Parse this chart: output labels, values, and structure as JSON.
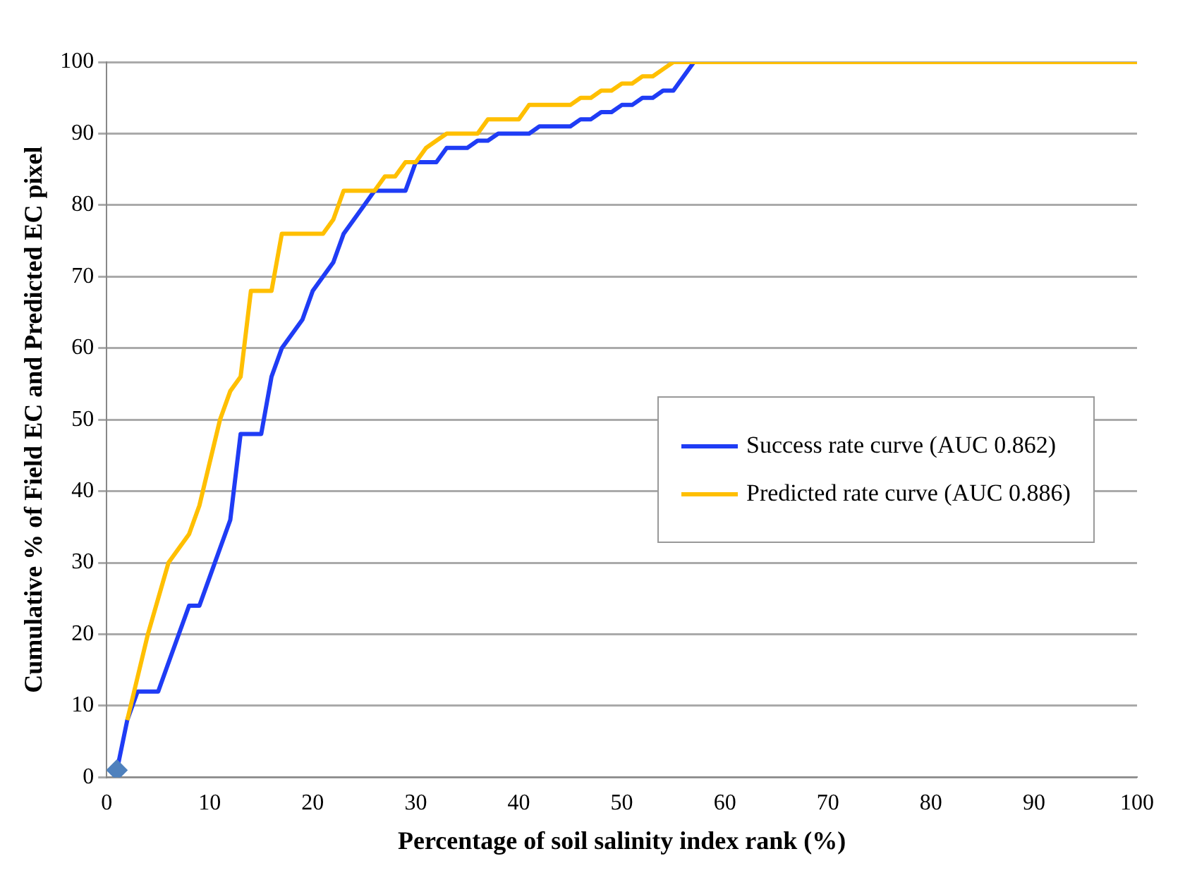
{
  "chart_data": {
    "type": "line",
    "xlabel": "Percentage of soil salinity index rank (%)",
    "ylabel": "Cumulative % of Field EC and Predicted EC pixel",
    "xlim": [
      0,
      100
    ],
    "xticks": [
      0,
      10,
      20,
      30,
      40,
      50,
      60,
      70,
      80,
      90,
      100
    ],
    "ylim": [
      0,
      100
    ],
    "yticks": [
      0,
      10,
      20,
      30,
      40,
      50,
      60,
      70,
      80,
      90,
      100
    ],
    "grid": "y",
    "legend": "right",
    "marker": "none",
    "line_style": "solid",
    "series": [
      {
        "name": "Success rate curve (AUC 0.862)",
        "color": "#1f3cf5",
        "x": [
          1,
          2,
          3,
          4,
          5,
          6,
          7,
          8,
          9,
          10,
          11,
          12,
          13,
          14,
          15,
          16,
          17,
          18,
          19,
          20,
          21,
          22,
          23,
          24,
          25,
          26,
          27,
          28,
          29,
          30,
          31,
          32,
          33,
          34,
          35,
          36,
          37,
          38,
          39,
          40,
          41,
          42,
          43,
          44,
          45,
          46,
          47,
          48,
          49,
          50,
          51,
          52,
          53,
          54,
          55,
          56,
          57
        ],
        "values": [
          1,
          8,
          12,
          12,
          12,
          16,
          20,
          24,
          24,
          28,
          32,
          36,
          48,
          48,
          48,
          56,
          60,
          62,
          64,
          68,
          70,
          72,
          76,
          78,
          80,
          82,
          82,
          82,
          82,
          86,
          86,
          86,
          88,
          88,
          88,
          89,
          89,
          90,
          90,
          90,
          90,
          91,
          91,
          91,
          91,
          92,
          92,
          93,
          93,
          94,
          94,
          95,
          95,
          96,
          96,
          98,
          100
        ]
      },
      {
        "name": "Predicted rate curve (AUC 0.886)",
        "color": "#ffbf00",
        "x": [
          2,
          3,
          4,
          5,
          6,
          7,
          8,
          9,
          10,
          11,
          12,
          13,
          14,
          15,
          16,
          17,
          18,
          19,
          20,
          21,
          22,
          23,
          24,
          25,
          26,
          27,
          28,
          29,
          30,
          31,
          32,
          33,
          34,
          35,
          36,
          37,
          38,
          39,
          40,
          41,
          42,
          43,
          44,
          45,
          46,
          47,
          48,
          49,
          50,
          51,
          52,
          53,
          54,
          55,
          100
        ],
        "values": [
          8,
          14,
          20,
          25,
          30,
          32,
          34,
          38,
          44,
          50,
          54,
          56,
          68,
          68,
          68,
          76,
          76,
          76,
          76,
          76,
          78,
          82,
          82,
          82,
          82,
          84,
          84,
          86,
          86,
          88,
          89,
          90,
          90,
          90,
          90,
          92,
          92,
          92,
          92,
          94,
          94,
          94,
          94,
          94,
          95,
          95,
          96,
          96,
          97,
          97,
          98,
          98,
          99,
          100,
          100
        ]
      },
      {
        "type": "scatter",
        "color": "#4f81bd",
        "marker": "diamond",
        "x": [
          1
        ],
        "values": [
          1
        ]
      }
    ]
  }
}
